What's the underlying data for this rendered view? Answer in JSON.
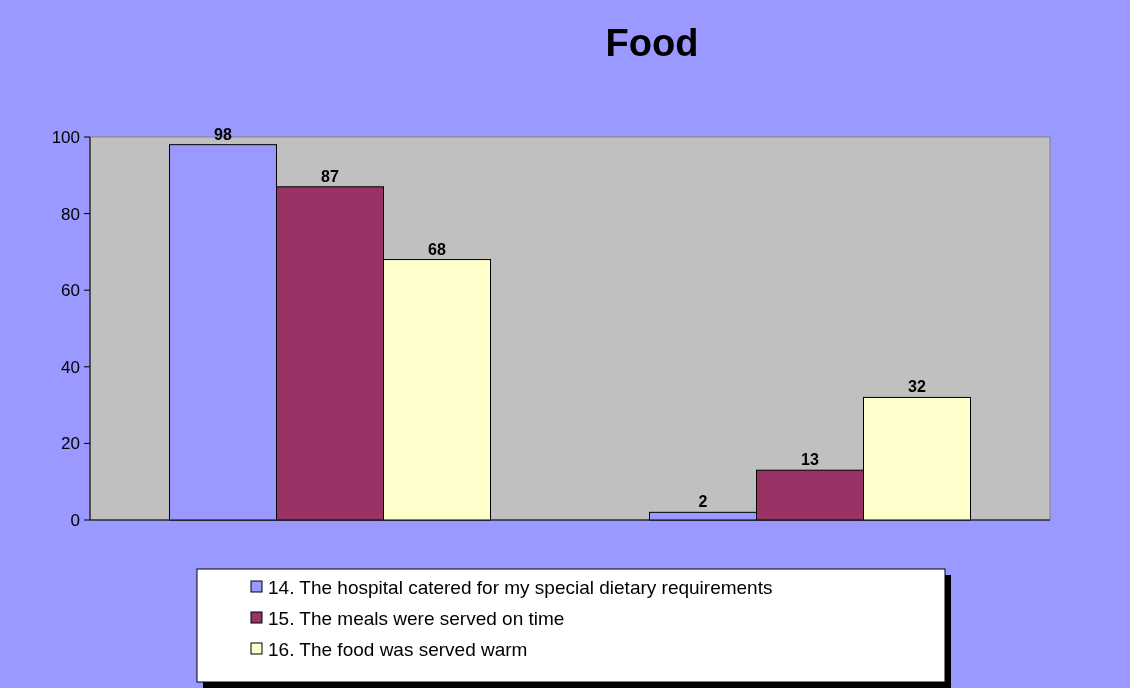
{
  "chart_data": {
    "type": "bar",
    "title": "Food",
    "categories": [
      null,
      null
    ],
    "series": [
      {
        "name": "14. The hospital catered for my special dietary requirements",
        "color": "#9999ff",
        "values": [
          98,
          2
        ]
      },
      {
        "name": "15. The meals were served on time",
        "color": "#993366",
        "values": [
          87,
          13
        ]
      },
      {
        "name": "16. The food was served warm",
        "color": "#ffffcc",
        "values": [
          68,
          32
        ]
      }
    ],
    "ylim": [
      0,
      100
    ],
    "yticks": [
      0,
      20,
      40,
      60,
      80,
      100
    ],
    "grid": false,
    "legend": "bottom",
    "data_labels": true
  }
}
